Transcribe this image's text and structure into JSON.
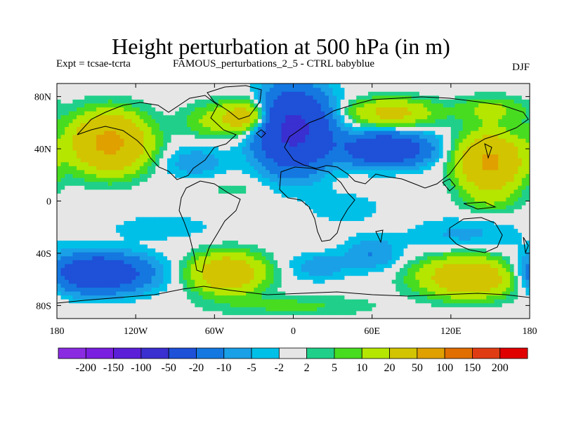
{
  "title": "Height perturbation at 500 hPa (in m)",
  "subtitle_left": "Expt = tcsae-tcrta",
  "subtitle_center": "FAMOUS_perturbations_2_5 - CTRL babyblue",
  "subtitle_right": "DJF",
  "y_ticks": [
    "80N",
    "40N",
    "0",
    "40S",
    "80S"
  ],
  "x_ticks": [
    "180",
    "120W",
    "60W",
    "0",
    "60E",
    "120E",
    "180"
  ],
  "colorbar": {
    "labels": [
      "-200",
      "-150",
      "-100",
      "-50",
      "-20",
      "-10",
      "-5",
      "-2",
      "2",
      "5",
      "10",
      "20",
      "50",
      "100",
      "150",
      "200"
    ],
    "colors": [
      "#8a2be2",
      "#7a1fe0",
      "#5b1fd8",
      "#3a2fd0",
      "#1e50d8",
      "#1478e0",
      "#1aa0e6",
      "#00c0e8",
      "#e6e6e6",
      "#20d08a",
      "#48dc20",
      "#b4e600",
      "#d2c400",
      "#e0a000",
      "#e06e00",
      "#e03c14",
      "#e00000"
    ]
  },
  "chart_data": {
    "type": "heatmap",
    "title": "Height perturbation at 500 hPa (in m)",
    "xlabel": "",
    "ylabel": "",
    "xlim": [
      -180,
      180
    ],
    "ylim": [
      -90,
      90
    ],
    "levels": [
      -200,
      -150,
      -100,
      -50,
      -20,
      -10,
      -5,
      -2,
      2,
      5,
      10,
      20,
      50,
      100,
      150,
      200
    ],
    "features": [
      {
        "lon": -140,
        "lat": 45,
        "value": 60,
        "lw": 26,
        "lh": 20
      },
      {
        "lon": -60,
        "lat": 62,
        "value": 12,
        "lw": 22,
        "lh": 12
      },
      {
        "lon": -35,
        "lat": 65,
        "value": 30,
        "lw": 18,
        "lh": 12
      },
      {
        "lon": -75,
        "lat": 30,
        "value": -8,
        "lw": 24,
        "lh": 12
      },
      {
        "lon": 0,
        "lat": 55,
        "value": -60,
        "lw": 26,
        "lh": 28
      },
      {
        "lon": 70,
        "lat": 40,
        "value": -40,
        "lw": 32,
        "lh": 12
      },
      {
        "lon": 75,
        "lat": 68,
        "value": 25,
        "lw": 30,
        "lh": 10
      },
      {
        "lon": 150,
        "lat": 30,
        "value": 55,
        "lw": 22,
        "lh": 20
      },
      {
        "lon": 150,
        "lat": 70,
        "value": 12,
        "lw": 25,
        "lh": 10
      },
      {
        "lon": -150,
        "lat": -55,
        "value": -40,
        "lw": 38,
        "lh": 14
      },
      {
        "lon": -50,
        "lat": -55,
        "value": 40,
        "lw": 25,
        "lh": 14
      },
      {
        "lon": 20,
        "lat": -50,
        "value": -8,
        "lw": 22,
        "lh": 10
      },
      {
        "lon": 60,
        "lat": -40,
        "value": -10,
        "lw": 20,
        "lh": 12
      },
      {
        "lon": 135,
        "lat": -58,
        "value": 40,
        "lw": 35,
        "lh": 14
      },
      {
        "lon": 130,
        "lat": -25,
        "value": -6,
        "lw": 40,
        "lh": 12
      },
      {
        "lon": 40,
        "lat": -5,
        "value": -4,
        "lw": 28,
        "lh": 12
      },
      {
        "lon": -100,
        "lat": -20,
        "value": -4,
        "lw": 40,
        "lh": 10
      },
      {
        "lon": 0,
        "lat": -80,
        "value": 6,
        "lw": 60,
        "lh": 8
      },
      {
        "lon": 150,
        "lat": 0,
        "value": 6,
        "lw": 20,
        "lh": 10
      },
      {
        "lon": -45,
        "lat": 10,
        "value": 3,
        "lw": 25,
        "lh": 8
      }
    ]
  }
}
